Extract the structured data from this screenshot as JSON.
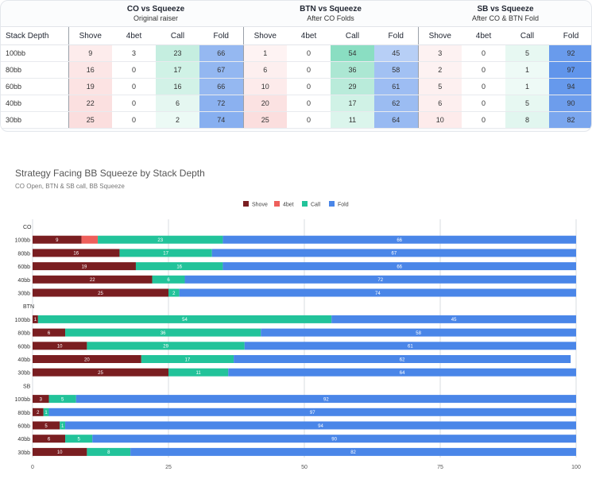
{
  "table": {
    "stack_depth_header": "Stack Depth",
    "groups": [
      {
        "title": "CO vs Squeeze",
        "subtitle": "Original raiser"
      },
      {
        "title": "BTN vs Squeeze",
        "subtitle": "After CO Folds"
      },
      {
        "title": "SB vs Squeeze",
        "subtitle": "After CO & BTN Fold"
      }
    ],
    "columns": [
      "Shove",
      "4bet",
      "Call",
      "Fold"
    ],
    "rows": [
      {
        "depth": "100bb",
        "co": [
          9,
          3,
          23,
          66
        ],
        "btn": [
          1,
          0,
          54,
          45
        ],
        "sb": [
          3,
          0,
          5,
          92
        ]
      },
      {
        "depth": "80bb",
        "co": [
          16,
          0,
          17,
          67
        ],
        "btn": [
          6,
          0,
          36,
          58
        ],
        "sb": [
          2,
          0,
          1,
          97
        ]
      },
      {
        "depth": "60bb",
        "co": [
          19,
          0,
          16,
          66
        ],
        "btn": [
          10,
          0,
          29,
          61
        ],
        "sb": [
          5,
          0,
          1,
          94
        ]
      },
      {
        "depth": "40bb",
        "co": [
          22,
          0,
          6,
          72
        ],
        "btn": [
          20,
          0,
          17,
          62
        ],
        "sb": [
          6,
          0,
          5,
          90
        ]
      },
      {
        "depth": "30bb",
        "co": [
          25,
          0,
          2,
          74
        ],
        "btn": [
          25,
          0,
          11,
          64
        ],
        "sb": [
          10,
          0,
          8,
          82
        ]
      }
    ]
  },
  "colors": {
    "shove": "#7a1e21",
    "fourbet": "#ee5f5b",
    "call": "#22c39a",
    "fold": "#4a86e8"
  },
  "chart_data": {
    "type": "bar",
    "orientation": "horizontal-stacked",
    "title": "Strategy Facing BB Squeeze by Stack Depth",
    "subtitle": "CO Open, BTN & SB call, BB Squeeze",
    "legend": [
      "Shove",
      "4bet",
      "Call",
      "Fold"
    ],
    "legend_position": "top-center",
    "xlim": [
      0,
      100
    ],
    "xticks": [
      0,
      25,
      50,
      75,
      100
    ],
    "groups": [
      {
        "label": "CO",
        "categories": [
          "100bb",
          "80bb",
          "60bb",
          "40bb",
          "30bb"
        ],
        "series": {
          "Shove": [
            9,
            16,
            19,
            22,
            25
          ],
          "4bet": [
            3,
            0,
            0,
            0,
            0
          ],
          "Call": [
            23,
            17,
            16,
            6,
            2
          ],
          "Fold": [
            66,
            67,
            66,
            72,
            74
          ]
        }
      },
      {
        "label": "BTN",
        "categories": [
          "100bb",
          "80bb",
          "60bb",
          "40bb",
          "30bb"
        ],
        "series": {
          "Shove": [
            1,
            6,
            10,
            20,
            25
          ],
          "4bet": [
            0,
            0,
            0,
            0,
            0
          ],
          "Call": [
            54,
            36,
            29,
            17,
            11
          ],
          "Fold": [
            45,
            58,
            61,
            62,
            64
          ]
        }
      },
      {
        "label": "SB",
        "categories": [
          "100bb",
          "80bb",
          "60bb",
          "40bb",
          "30bb"
        ],
        "series": {
          "Shove": [
            3,
            2,
            5,
            6,
            10
          ],
          "4bet": [
            0,
            0,
            0,
            0,
            0
          ],
          "Call": [
            5,
            1,
            1,
            5,
            8
          ],
          "Fold": [
            92,
            97,
            94,
            90,
            82
          ]
        }
      }
    ]
  }
}
